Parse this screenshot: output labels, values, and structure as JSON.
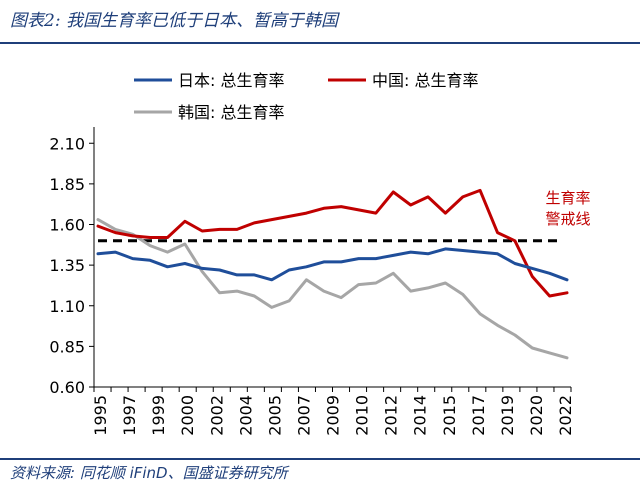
{
  "header": {
    "title": "图表2: 我国生育率已低于日本、暂高于韩国"
  },
  "footer": {
    "source": "资料来源: 同花顺 iFinD、国盛证券研究所"
  },
  "chart_data": {
    "type": "line",
    "title": "",
    "xlabel": "",
    "ylabel": "",
    "ylim": [
      0.6,
      2.2
    ],
    "y_ticks": [
      "0.60",
      "0.85",
      "1.10",
      "1.35",
      "1.60",
      "1.85",
      "2.10"
    ],
    "x_tick_labels": [
      "1995",
      "1997",
      "1999",
      "2000",
      "2002",
      "2004",
      "2005",
      "2007",
      "2009",
      "2010",
      "2012",
      "2014",
      "2015",
      "2017",
      "2019",
      "2020",
      "2022"
    ],
    "x": [
      1995,
      1996,
      1997,
      1998,
      1999,
      2000,
      2001,
      2002,
      2003,
      2004,
      2005,
      2006,
      2007,
      2008,
      2009,
      2010,
      2011,
      2012,
      2013,
      2014,
      2015,
      2016,
      2017,
      2018,
      2019,
      2020,
      2021,
      2022
    ],
    "grid": false,
    "legend_position": "top",
    "series": [
      {
        "name": "日本: 总生育率",
        "color": "#1f4e9a",
        "values": [
          1.42,
          1.43,
          1.39,
          1.38,
          1.34,
          1.36,
          1.33,
          1.32,
          1.29,
          1.29,
          1.26,
          1.32,
          1.34,
          1.37,
          1.37,
          1.39,
          1.39,
          1.41,
          1.43,
          1.42,
          1.45,
          1.44,
          1.43,
          1.42,
          1.36,
          1.33,
          1.3,
          1.26
        ]
      },
      {
        "name": "中国: 总生育率",
        "color": "#c00000",
        "values": [
          1.59,
          1.55,
          1.53,
          1.52,
          1.52,
          1.62,
          1.56,
          1.57,
          1.57,
          1.61,
          1.63,
          1.65,
          1.67,
          1.7,
          1.71,
          1.69,
          1.67,
          1.8,
          1.72,
          1.77,
          1.67,
          1.77,
          1.81,
          1.55,
          1.5,
          1.28,
          1.16,
          1.18
        ]
      },
      {
        "name": "韩国: 总生育率",
        "color": "#a6a6a6",
        "values": [
          1.63,
          1.57,
          1.54,
          1.47,
          1.43,
          1.48,
          1.31,
          1.18,
          1.19,
          1.16,
          1.09,
          1.13,
          1.26,
          1.19,
          1.15,
          1.23,
          1.24,
          1.3,
          1.19,
          1.21,
          1.24,
          1.17,
          1.05,
          0.98,
          0.92,
          0.84,
          0.81,
          0.78
        ]
      }
    ],
    "reference_line": {
      "value": 1.5,
      "label_line1": "生育率",
      "label_line2": "警戒线",
      "color": "#000000"
    }
  }
}
